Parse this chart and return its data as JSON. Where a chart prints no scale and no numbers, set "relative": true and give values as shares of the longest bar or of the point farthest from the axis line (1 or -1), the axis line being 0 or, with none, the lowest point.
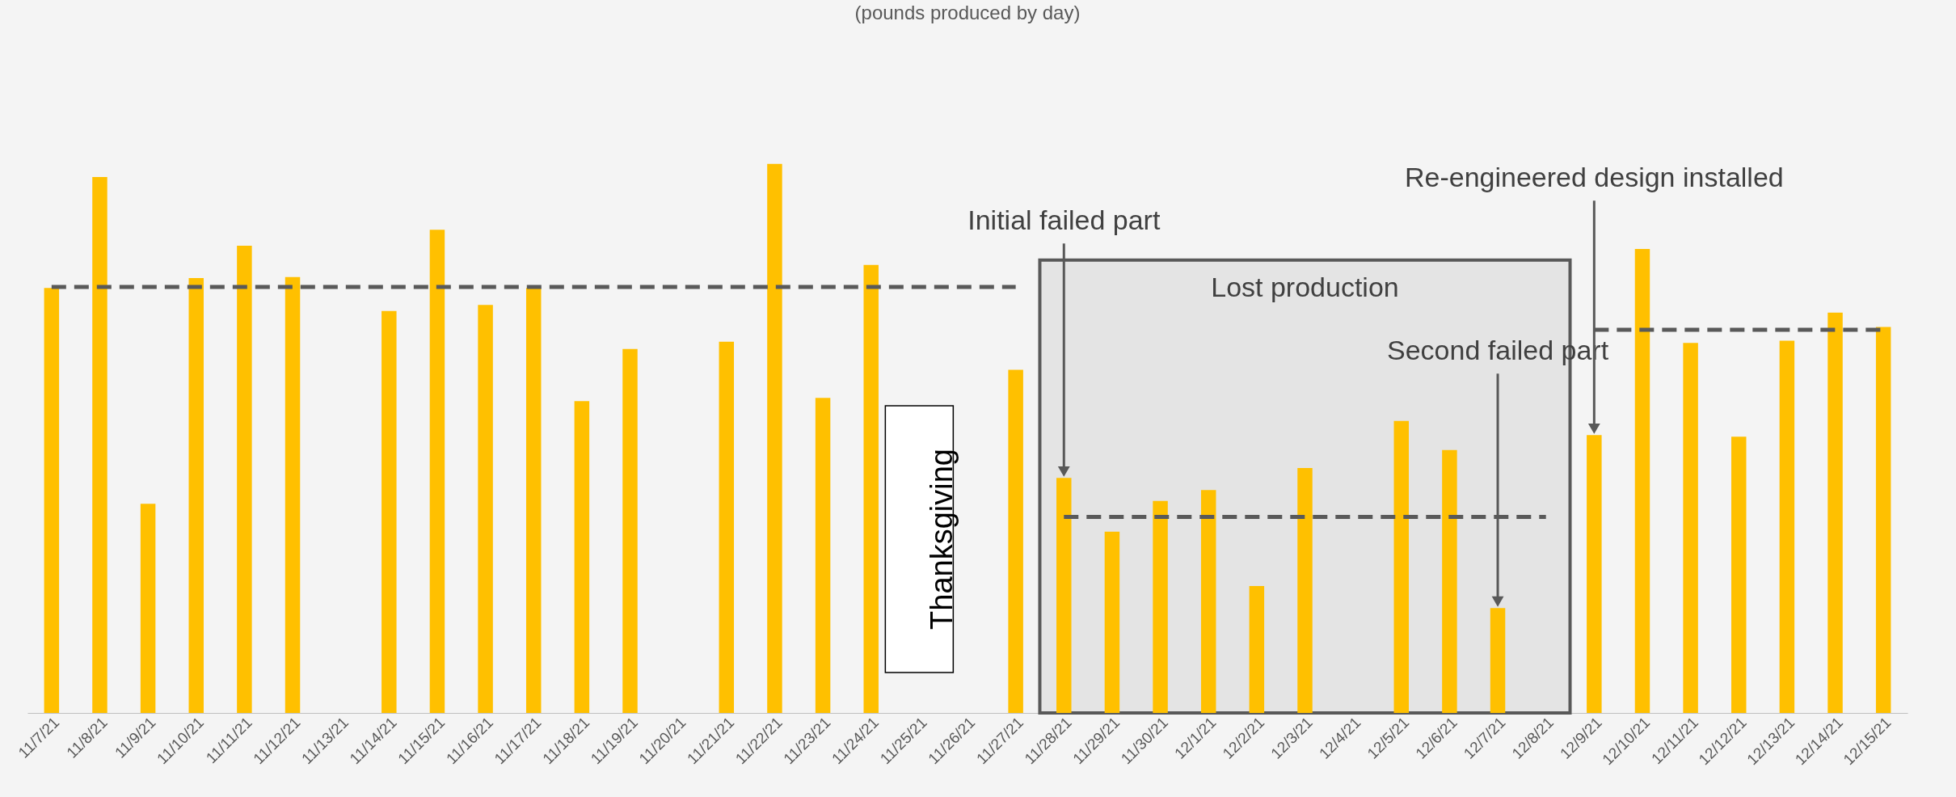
{
  "chart_data": {
    "type": "bar",
    "subtitle": "(pounds produced by day)",
    "relative": true,
    "grid": false,
    "categories": [
      "11/7/21",
      "11/8/21",
      "11/9/21",
      "11/10/21",
      "11/11/21",
      "11/12/21",
      "11/13/21",
      "11/14/21",
      "11/15/21",
      "11/16/21",
      "11/17/21",
      "11/18/21",
      "11/19/21",
      "11/20/21",
      "11/21/21",
      "11/22/21",
      "11/23/21",
      "11/24/21",
      "11/25/21",
      "11/26/21",
      "11/27/21",
      "11/28/21",
      "11/29/21",
      "11/30/21",
      "12/1/21",
      "12/2/21",
      "12/3/21",
      "12/4/21",
      "12/5/21",
      "12/6/21",
      "12/7/21",
      "12/8/21",
      "12/9/21",
      "12/10/21",
      "12/11/21",
      "12/12/21",
      "12/13/21",
      "12/14/21",
      "12/15/21"
    ],
    "series": [
      {
        "color": "#ffc000",
        "values": [
          0.774,
          0.976,
          0.381,
          0.792,
          0.851,
          0.794,
          null,
          0.732,
          0.88,
          0.743,
          0.774,
          0.568,
          0.663,
          null,
          0.676,
          1,
          0.574,
          0.816,
          null,
          null,
          0.625,
          0.428,
          0.33,
          0.386,
          0.406,
          0.231,
          0.446,
          null,
          0.532,
          0.479,
          0.191,
          null,
          0.506,
          0.845,
          0.674,
          0.503,
          0.678,
          0.729,
          0.703
        ]
      },
      {
        "type": "line",
        "color": "#595959",
        "line_style": "dashed",
        "values": [
          0.776,
          0.776,
          0.776,
          0.776,
          0.776,
          0.776,
          0.776,
          0.776,
          0.776,
          0.776,
          0.776,
          0.776,
          0.776,
          0.776,
          0.776,
          0.776,
          0.776,
          0.776,
          0.776,
          0.776,
          0.776,
          null,
          null,
          null,
          null,
          null,
          null,
          null,
          null,
          null,
          null,
          null,
          null,
          null,
          null,
          null,
          null,
          null,
          null
        ]
      },
      {
        "type": "line",
        "color": "#595959",
        "line_style": "dashed",
        "values": [
          null,
          null,
          null,
          null,
          null,
          null,
          null,
          null,
          null,
          null,
          null,
          null,
          null,
          null,
          null,
          null,
          null,
          null,
          null,
          null,
          null,
          0.357,
          0.357,
          0.357,
          0.357,
          0.357,
          0.357,
          0.357,
          0.357,
          0.357,
          0.357,
          0.357,
          null,
          null,
          null,
          null,
          null,
          null,
          null
        ]
      },
      {
        "type": "line",
        "color": "#595959",
        "line_style": "dashed",
        "values": [
          null,
          null,
          null,
          null,
          null,
          null,
          null,
          null,
          null,
          null,
          null,
          null,
          null,
          null,
          null,
          null,
          null,
          null,
          null,
          null,
          null,
          null,
          null,
          null,
          null,
          null,
          null,
          null,
          null,
          null,
          null,
          null,
          0.698,
          0.698,
          0.698,
          0.698,
          0.698,
          0.698,
          0.698
        ]
      }
    ],
    "bands": [
      {
        "axis": "x",
        "from": "11/28/21",
        "to": "12/8/21",
        "label": "Lost production",
        "color": "#e4e4e4"
      }
    ],
    "annotations": [
      "Initial failed part",
      "Second failed part",
      "Re-engineered design installed",
      "Thanksgiving"
    ]
  }
}
